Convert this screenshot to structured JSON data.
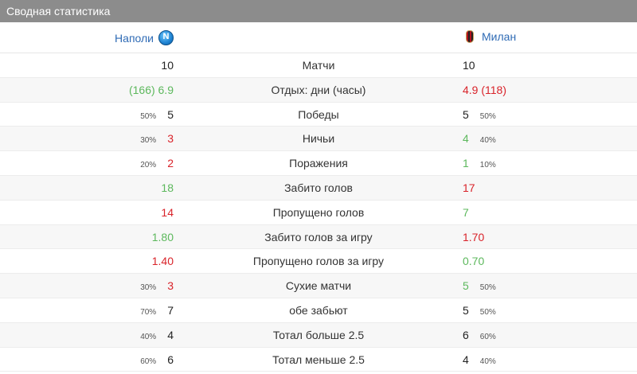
{
  "header": {
    "title": "Сводная статистика"
  },
  "teams": {
    "home": "Наполи",
    "away": "Милан"
  },
  "rows": [
    {
      "label": "Матчи",
      "left": {
        "value": "10",
        "pct": "",
        "color": "black"
      },
      "right": {
        "value": "10",
        "pct": "",
        "color": "black"
      }
    },
    {
      "label": "Отдых: дни (часы)",
      "left": {
        "value": "(166) 6.9",
        "pct": "",
        "color": "green"
      },
      "right": {
        "value": "4.9 (118)",
        "pct": "",
        "color": "red"
      }
    },
    {
      "label": "Победы",
      "left": {
        "value": "5",
        "pct": "50%",
        "color": "black"
      },
      "right": {
        "value": "5",
        "pct": "50%",
        "color": "black"
      }
    },
    {
      "label": "Ничьи",
      "left": {
        "value": "3",
        "pct": "30%",
        "color": "red"
      },
      "right": {
        "value": "4",
        "pct": "40%",
        "color": "green"
      }
    },
    {
      "label": "Поражения",
      "left": {
        "value": "2",
        "pct": "20%",
        "color": "red"
      },
      "right": {
        "value": "1",
        "pct": "10%",
        "color": "green"
      }
    },
    {
      "label": "Забито голов",
      "left": {
        "value": "18",
        "pct": "",
        "color": "green"
      },
      "right": {
        "value": "17",
        "pct": "",
        "color": "red"
      }
    },
    {
      "label": "Пропущено голов",
      "left": {
        "value": "14",
        "pct": "",
        "color": "red"
      },
      "right": {
        "value": "7",
        "pct": "",
        "color": "green"
      }
    },
    {
      "label": "Забито голов за игру",
      "left": {
        "value": "1.80",
        "pct": "",
        "color": "green"
      },
      "right": {
        "value": "1.70",
        "pct": "",
        "color": "red"
      }
    },
    {
      "label": "Пропущено голов за игру",
      "left": {
        "value": "1.40",
        "pct": "",
        "color": "red"
      },
      "right": {
        "value": "0.70",
        "pct": "",
        "color": "green"
      }
    },
    {
      "label": "Сухие матчи",
      "left": {
        "value": "3",
        "pct": "30%",
        "color": "red"
      },
      "right": {
        "value": "5",
        "pct": "50%",
        "color": "green"
      }
    },
    {
      "label": "обе забьют",
      "left": {
        "value": "7",
        "pct": "70%",
        "color": "black"
      },
      "right": {
        "value": "5",
        "pct": "50%",
        "color": "black"
      }
    },
    {
      "label": "Тотал больше 2.5",
      "left": {
        "value": "4",
        "pct": "40%",
        "color": "black"
      },
      "right": {
        "value": "6",
        "pct": "60%",
        "color": "black"
      }
    },
    {
      "label": "Тотал меньше 2.5",
      "left": {
        "value": "6",
        "pct": "60%",
        "color": "black"
      },
      "right": {
        "value": "4",
        "pct": "40%",
        "color": "black"
      }
    }
  ],
  "colors": {
    "green": "#5cb85c",
    "red": "#d9232a",
    "black": "#222222",
    "header_bg": "#8c8c8c",
    "link": "#2f6bb5"
  }
}
